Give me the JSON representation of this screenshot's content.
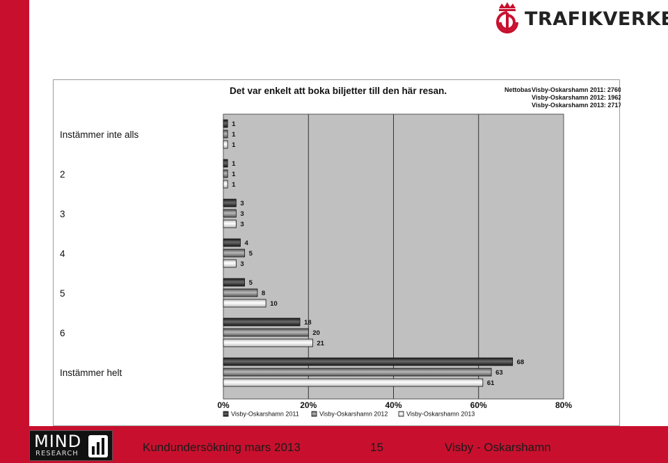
{
  "brand": {
    "name": "TRAFIKVERKET"
  },
  "footer": {
    "logo_main": "MIND",
    "logo_sub": "RESEARCH",
    "survey": "Kundundersökning mars 2013",
    "page": "15",
    "route": "Visby - Oskarshamn"
  },
  "colors": {
    "accent": "#c8102e",
    "plot_bg": "#c0c0c0",
    "series": [
      "#3a3a3a",
      "#8a8a8a",
      "#f0f0f0"
    ]
  },
  "chart_data": {
    "type": "bar",
    "orientation": "horizontal",
    "title": "Det var enkelt att boka biljetter till den här resan.",
    "nettobas_label": "Nettobas",
    "nettobas": [
      "Visby-Oskarshamn 2011: 2760",
      "Visby-Oskarshamn 2012: 1962",
      "Visby-Oskarshamn 2013: 2717"
    ],
    "categories": [
      "Instämmer inte alls",
      "2",
      "3",
      "4",
      "5",
      "6",
      "Instämmer helt"
    ],
    "series": [
      {
        "name": "Visby-Oskarshamn 2011",
        "values": [
          1,
          1,
          3,
          4,
          5,
          18,
          68
        ]
      },
      {
        "name": "Visby-Oskarshamn 2012",
        "values": [
          1,
          1,
          3,
          5,
          8,
          20,
          63
        ]
      },
      {
        "name": "Visby-Oskarshamn 2013",
        "values": [
          1,
          1,
          3,
          3,
          10,
          21,
          61
        ]
      }
    ],
    "xlim": [
      0,
      80
    ],
    "xticks": [
      0,
      20,
      40,
      60,
      80
    ],
    "xtick_labels": [
      "0%",
      "20%",
      "40%",
      "60%",
      "80%"
    ],
    "grid": true,
    "legend_position": "bottom"
  }
}
